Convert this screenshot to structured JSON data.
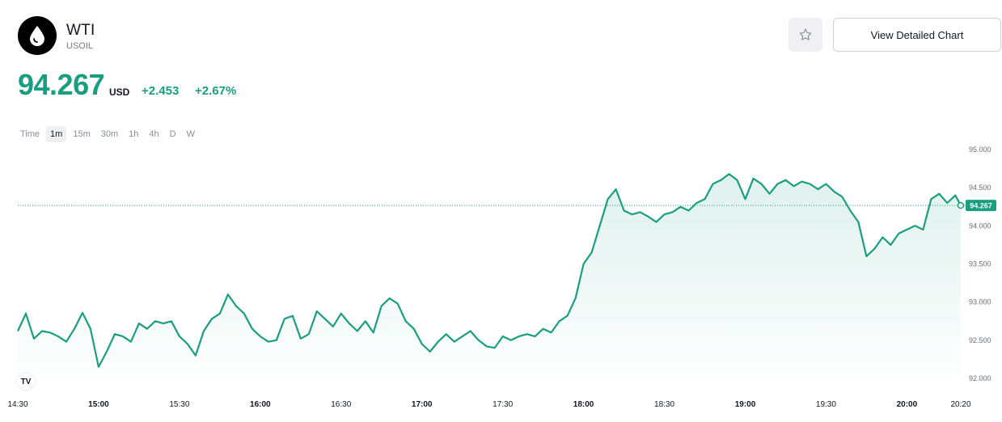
{
  "header": {
    "name": "WTI",
    "ticker": "USOIL",
    "detail_button": "View Detailed Chart",
    "logo_icon": "oil-drop-icon",
    "favorite_icon": "star-icon"
  },
  "quote": {
    "price": "94.267",
    "currency": "USD",
    "change": "+2.453",
    "change_percent": "+2.67%"
  },
  "timeframes": [
    "Time",
    "1m",
    "15m",
    "30m",
    "1h",
    "4h",
    "D",
    "W"
  ],
  "active_timeframe": "1m",
  "tv_logo": "TV",
  "colors": {
    "accent": "#1a9e80",
    "line": "#1a9e80",
    "text": "#131722"
  },
  "chart_data": {
    "type": "area",
    "ylim": [
      92.0,
      95.0
    ],
    "y_ticks": [
      "95.000",
      "94.500",
      "94.000",
      "93.500",
      "93.000",
      "92.500",
      "92.000"
    ],
    "x_ticks": [
      "14:30",
      "15:00",
      "15:30",
      "16:00",
      "16:30",
      "17:00",
      "17:30",
      "18:00",
      "18:30",
      "19:00",
      "19:30",
      "20:00",
      "20:20"
    ],
    "last_price_label": "94.267",
    "series": [
      {
        "points": [
          [
            "14:30",
            92.62
          ],
          [
            "14:33",
            92.85
          ],
          [
            "14:36",
            92.52
          ],
          [
            "14:39",
            92.62
          ],
          [
            "14:42",
            92.6
          ],
          [
            "14:45",
            92.55
          ],
          [
            "14:48",
            92.48
          ],
          [
            "14:51",
            92.65
          ],
          [
            "14:54",
            92.86
          ],
          [
            "14:57",
            92.65
          ],
          [
            "15:00",
            92.15
          ],
          [
            "15:03",
            92.35
          ],
          [
            "15:06",
            92.58
          ],
          [
            "15:09",
            92.55
          ],
          [
            "15:12",
            92.48
          ],
          [
            "15:15",
            92.72
          ],
          [
            "15:18",
            92.65
          ],
          [
            "15:21",
            92.75
          ],
          [
            "15:24",
            92.72
          ],
          [
            "15:27",
            92.75
          ],
          [
            "15:30",
            92.55
          ],
          [
            "15:33",
            92.45
          ],
          [
            "15:36",
            92.3
          ],
          [
            "15:39",
            92.62
          ],
          [
            "15:42",
            92.78
          ],
          [
            "15:45",
            92.85
          ],
          [
            "15:48",
            93.1
          ],
          [
            "15:51",
            92.95
          ],
          [
            "15:54",
            92.85
          ],
          [
            "15:57",
            92.65
          ],
          [
            "16:00",
            92.55
          ],
          [
            "16:03",
            92.48
          ],
          [
            "16:06",
            92.5
          ],
          [
            "16:09",
            92.78
          ],
          [
            "16:12",
            92.82
          ],
          [
            "16:15",
            92.52
          ],
          [
            "16:18",
            92.58
          ],
          [
            "16:21",
            92.88
          ],
          [
            "16:24",
            92.78
          ],
          [
            "16:27",
            92.68
          ],
          [
            "16:30",
            92.85
          ],
          [
            "16:33",
            92.72
          ],
          [
            "16:36",
            92.62
          ],
          [
            "16:39",
            92.75
          ],
          [
            "16:42",
            92.6
          ],
          [
            "16:45",
            92.95
          ],
          [
            "16:48",
            93.05
          ],
          [
            "16:51",
            92.98
          ],
          [
            "16:54",
            92.75
          ],
          [
            "16:57",
            92.65
          ],
          [
            "17:00",
            92.45
          ],
          [
            "17:03",
            92.35
          ],
          [
            "17:06",
            92.48
          ],
          [
            "17:09",
            92.58
          ],
          [
            "17:12",
            92.48
          ],
          [
            "17:15",
            92.55
          ],
          [
            "17:18",
            92.62
          ],
          [
            "17:21",
            92.5
          ],
          [
            "17:24",
            92.42
          ],
          [
            "17:27",
            92.4
          ],
          [
            "17:30",
            92.55
          ],
          [
            "17:33",
            92.5
          ],
          [
            "17:36",
            92.55
          ],
          [
            "17:39",
            92.58
          ],
          [
            "17:42",
            92.55
          ],
          [
            "17:45",
            92.65
          ],
          [
            "17:48",
            92.6
          ],
          [
            "17:51",
            92.75
          ],
          [
            "17:54",
            92.82
          ],
          [
            "17:57",
            93.05
          ],
          [
            "18:00",
            93.5
          ],
          [
            "18:03",
            93.65
          ],
          [
            "18:06",
            94.0
          ],
          [
            "18:09",
            94.35
          ],
          [
            "18:12",
            94.48
          ],
          [
            "18:15",
            94.2
          ],
          [
            "18:18",
            94.15
          ],
          [
            "18:21",
            94.18
          ],
          [
            "18:24",
            94.12
          ],
          [
            "18:27",
            94.05
          ],
          [
            "18:30",
            94.15
          ],
          [
            "18:33",
            94.18
          ],
          [
            "18:36",
            94.25
          ],
          [
            "18:39",
            94.2
          ],
          [
            "18:42",
            94.3
          ],
          [
            "18:45",
            94.35
          ],
          [
            "18:48",
            94.55
          ],
          [
            "18:51",
            94.6
          ],
          [
            "18:54",
            94.68
          ],
          [
            "18:57",
            94.6
          ],
          [
            "19:00",
            94.35
          ],
          [
            "19:03",
            94.62
          ],
          [
            "19:06",
            94.55
          ],
          [
            "19:09",
            94.42
          ],
          [
            "19:12",
            94.55
          ],
          [
            "19:15",
            94.6
          ],
          [
            "19:18",
            94.52
          ],
          [
            "19:21",
            94.58
          ],
          [
            "19:24",
            94.55
          ],
          [
            "19:27",
            94.48
          ],
          [
            "19:30",
            94.55
          ],
          [
            "19:33",
            94.45
          ],
          [
            "19:36",
            94.38
          ],
          [
            "19:39",
            94.2
          ],
          [
            "19:42",
            94.05
          ],
          [
            "19:45",
            93.6
          ],
          [
            "19:48",
            93.7
          ],
          [
            "19:51",
            93.85
          ],
          [
            "19:54",
            93.75
          ],
          [
            "19:57",
            93.9
          ],
          [
            "20:00",
            93.95
          ],
          [
            "20:03",
            94.0
          ],
          [
            "20:06",
            93.95
          ],
          [
            "20:09",
            94.35
          ],
          [
            "20:12",
            94.42
          ],
          [
            "20:15",
            94.3
          ],
          [
            "20:18",
            94.4
          ],
          [
            "20:20",
            94.267
          ]
        ]
      }
    ]
  }
}
